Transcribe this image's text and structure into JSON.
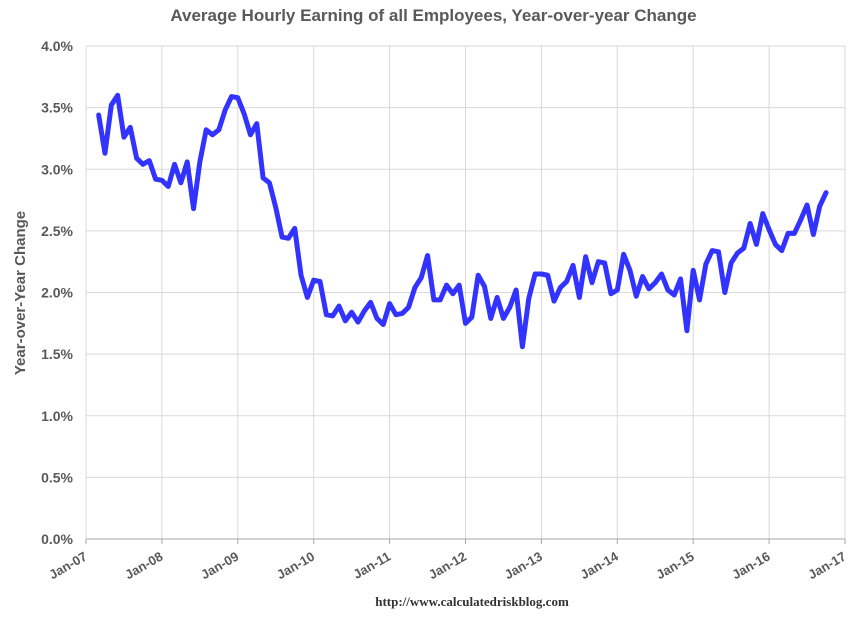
{
  "chart_data": {
    "type": "line",
    "title": "Average Hourly Earning of all Employees, Year-over-year Change",
    "xlabel": "",
    "ylabel": "Year-over-Year Change",
    "source": "http://www.calculatedriskblog.com",
    "xlim": [
      "Jan-07",
      "Jan-17"
    ],
    "ylim": [
      0,
      4.0
    ],
    "grid": true,
    "legend": "none",
    "x_tick_labels": [
      "Jan-07",
      "Jan-08",
      "Jan-09",
      "Jan-10",
      "Jan-11",
      "Jan-12",
      "Jan-13",
      "Jan-14",
      "Jan-15",
      "Jan-16",
      "Jan-17"
    ],
    "y_tick_labels": [
      "0.0%",
      "0.5%",
      "1.0%",
      "1.5%",
      "2.0%",
      "2.5%",
      "3.0%",
      "3.5%",
      "4.0%"
    ],
    "y_tick_values": [
      0,
      0.5,
      1.0,
      1.5,
      2.0,
      2.5,
      3.0,
      3.5,
      4.0
    ],
    "line_color": "#3333ff",
    "series": [
      {
        "start": "Mar-07",
        "frequency": "monthly",
        "values": [
          3.44,
          3.13,
          3.52,
          3.6,
          3.26,
          3.34,
          3.09,
          3.04,
          3.07,
          2.92,
          2.91,
          2.86,
          3.04,
          2.89,
          3.06,
          2.68,
          3.06,
          3.32,
          3.28,
          3.32,
          3.48,
          3.59,
          3.58,
          3.45,
          3.28,
          3.37,
          2.93,
          2.89,
          2.69,
          2.45,
          2.44,
          2.52,
          2.14,
          1.96,
          2.1,
          2.09,
          1.82,
          1.81,
          1.89,
          1.77,
          1.84,
          1.76,
          1.85,
          1.92,
          1.79,
          1.74,
          1.91,
          1.82,
          1.83,
          1.88,
          2.04,
          2.12,
          2.3,
          1.94,
          1.94,
          2.06,
          1.99,
          2.06,
          1.75,
          1.8,
          2.14,
          2.05,
          1.79,
          1.96,
          1.79,
          1.88,
          2.02,
          1.56,
          1.95,
          2.15,
          2.15,
          2.14,
          1.93,
          2.04,
          2.09,
          2.22,
          1.96,
          2.29,
          2.08,
          2.25,
          2.24,
          1.99,
          2.02,
          2.31,
          2.18,
          1.97,
          2.13,
          2.03,
          2.08,
          2.15,
          2.02,
          1.98,
          2.11,
          1.69,
          2.18,
          1.94,
          2.23,
          2.34,
          2.33,
          2.0,
          2.24,
          2.32,
          2.36,
          2.56,
          2.39,
          2.64,
          2.51,
          2.39,
          2.34,
          2.48,
          2.48,
          2.59,
          2.71,
          2.47,
          2.7,
          2.81
        ]
      }
    ]
  }
}
